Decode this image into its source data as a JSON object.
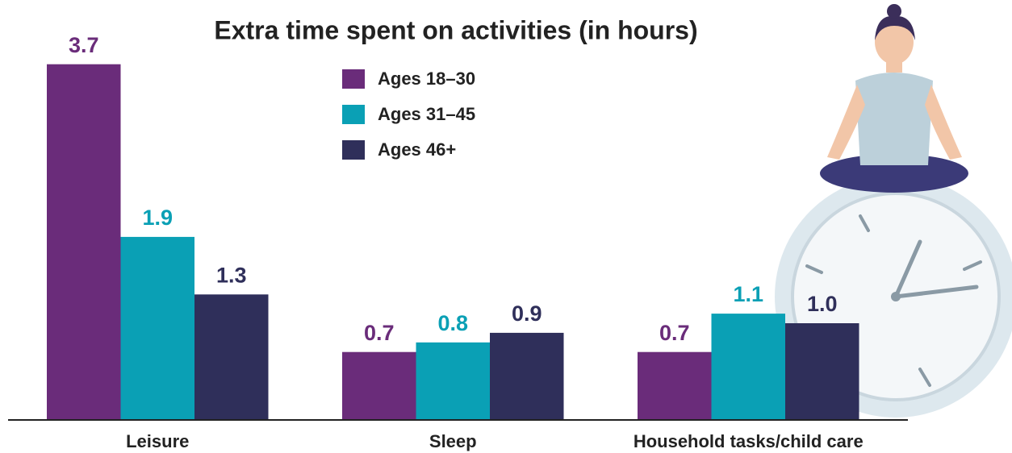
{
  "chart_data": {
    "type": "bar",
    "title": "Extra time spent on activities (in hours)",
    "categories": [
      "Leisure",
      "Sleep",
      "Household tasks/child care"
    ],
    "series": [
      {
        "name": "Ages 18–30",
        "color": "#6a2c7a",
        "values": [
          3.7,
          0.7,
          0.7
        ]
      },
      {
        "name": "Ages 31–45",
        "color": "#0aa0b5",
        "values": [
          1.9,
          0.8,
          1.1
        ]
      },
      {
        "name": "Ages 46+",
        "color": "#2f2f5a",
        "values": [
          1.3,
          0.9,
          1
        ],
        "value_labels": [
          "1.3",
          "0.9",
          "1.0"
        ]
      }
    ]
  }
}
